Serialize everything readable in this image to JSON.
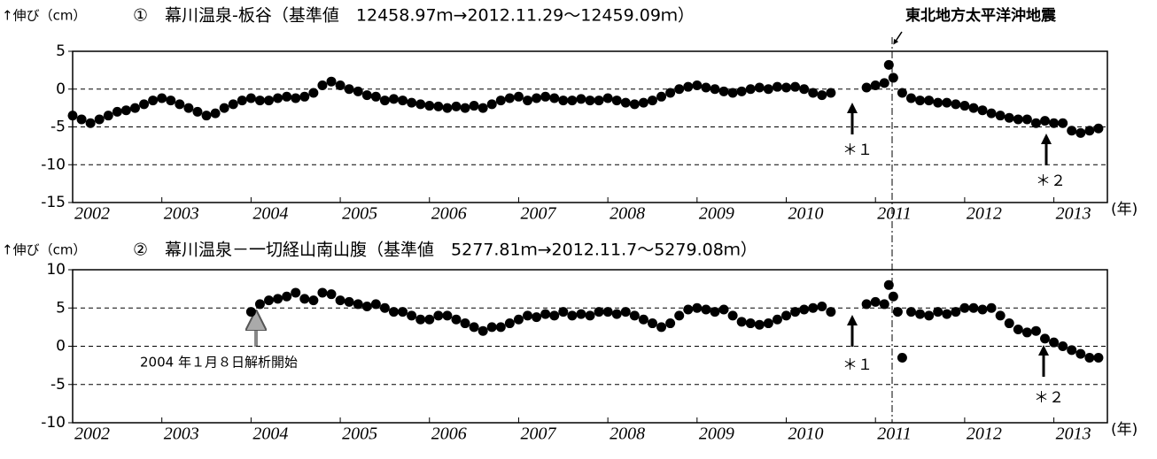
{
  "chart_data": [
    {
      "type": "scatter",
      "title": "①　幕川温泉-板谷（基準値　12458.97ｍ→2012.11.29～12459.09ｍ）",
      "ylabel": "↑伸び（cm）",
      "xlabel": "(年)",
      "color": "#000000",
      "annotations": [
        "東北地方太平洋沖地震",
        "＊１",
        "＊２"
      ],
      "xlim": [
        2002,
        2013.6
      ],
      "ylim": [
        -15,
        5
      ],
      "xticks": [
        2002,
        2003,
        2004,
        2005,
        2006,
        2007,
        2008,
        2009,
        2010,
        2011,
        2012,
        2013
      ],
      "yticks": [
        5,
        0,
        -5,
        -10,
        -15
      ],
      "grid": true,
      "x": [
        2002.0,
        2002.1,
        2002.2,
        2002.3,
        2002.4,
        2002.5,
        2002.6,
        2002.7,
        2002.8,
        2002.9,
        2003.0,
        2003.1,
        2003.2,
        2003.3,
        2003.4,
        2003.5,
        2003.6,
        2003.7,
        2003.8,
        2003.9,
        2004.0,
        2004.1,
        2004.2,
        2004.3,
        2004.4,
        2004.5,
        2004.6,
        2004.7,
        2004.8,
        2004.9,
        2005.0,
        2005.1,
        2005.2,
        2005.3,
        2005.4,
        2005.5,
        2005.6,
        2005.7,
        2005.8,
        2005.9,
        2006.0,
        2006.1,
        2006.2,
        2006.3,
        2006.4,
        2006.5,
        2006.6,
        2006.7,
        2006.8,
        2006.9,
        2007.0,
        2007.1,
        2007.2,
        2007.3,
        2007.4,
        2007.5,
        2007.6,
        2007.7,
        2007.8,
        2007.9,
        2008.0,
        2008.1,
        2008.2,
        2008.3,
        2008.4,
        2008.5,
        2008.6,
        2008.7,
        2008.8,
        2008.9,
        2009.0,
        2009.1,
        2009.2,
        2009.3,
        2009.4,
        2009.5,
        2009.6,
        2009.7,
        2009.8,
        2009.9,
        2010.0,
        2010.1,
        2010.2,
        2010.3,
        2010.4,
        2010.5,
        2010.9,
        2011.0,
        2011.1,
        2011.15,
        2011.2,
        2011.3,
        2011.4,
        2011.5,
        2011.6,
        2011.7,
        2011.8,
        2011.9,
        2012.0,
        2012.1,
        2012.2,
        2012.3,
        2012.4,
        2012.5,
        2012.6,
        2012.7,
        2012.8,
        2012.9,
        2013.0,
        2013.1,
        2013.2,
        2013.3,
        2013.4,
        2013.5
      ],
      "values": [
        -3.5,
        -4,
        -4.5,
        -4,
        -3.5,
        -3,
        -2.8,
        -2.5,
        -2,
        -1.5,
        -1.2,
        -1.5,
        -2,
        -2.5,
        -3,
        -3.5,
        -3.2,
        -2.5,
        -2,
        -1.5,
        -1.2,
        -1.5,
        -1.5,
        -1.2,
        -1,
        -1.2,
        -1,
        -0.5,
        0.5,
        1,
        0.5,
        0,
        -0.3,
        -0.8,
        -1,
        -1.5,
        -1.3,
        -1.5,
        -1.8,
        -2,
        -2.2,
        -2.3,
        -2.5,
        -2.3,
        -2.5,
        -2.2,
        -2.5,
        -2,
        -1.5,
        -1.2,
        -1,
        -1.5,
        -1.2,
        -1,
        -1.2,
        -1.5,
        -1.5,
        -1.3,
        -1.5,
        -1.5,
        -1.2,
        -1.5,
        -1.8,
        -2,
        -1.8,
        -1.5,
        -1,
        -0.5,
        0,
        0.3,
        0.5,
        0.2,
        0,
        -0.3,
        -0.5,
        -0.3,
        0,
        0.2,
        0,
        0.3,
        0.2,
        0.3,
        0,
        -0.5,
        -0.8,
        -0.5,
        0.2,
        0.5,
        0.8,
        3.2,
        1.5,
        -0.5,
        -1.2,
        -1.5,
        -1.5,
        -1.8,
        -1.8,
        -2,
        -2.2,
        -2.5,
        -2.8,
        -3.2,
        -3.5,
        -3.8,
        -4,
        -4,
        -4.5,
        -4.2,
        -4.5,
        -4.5,
        -5.5,
        -5.8,
        -5.5,
        -5.2
      ]
    },
    {
      "type": "scatter",
      "title": "②　幕川温泉－一切経山南山腹（基準値　5277.81ｍ→2012.11.7～5279.08ｍ）",
      "ylabel": "↑伸び（cm）",
      "xlabel": "(年)",
      "color": "#000000",
      "annotations": [
        "2004 年１月８日解析開始",
        "＊１",
        "＊２"
      ],
      "xlim": [
        2002,
        2013.6
      ],
      "ylim": [
        -10,
        10
      ],
      "xticks": [
        2002,
        2003,
        2004,
        2005,
        2006,
        2007,
        2008,
        2009,
        2010,
        2011,
        2012,
        2013
      ],
      "yticks": [
        10,
        5,
        0,
        -5,
        -10
      ],
      "grid": true,
      "x": [
        2004.0,
        2004.1,
        2004.2,
        2004.3,
        2004.4,
        2004.5,
        2004.6,
        2004.7,
        2004.8,
        2004.9,
        2005.0,
        2005.1,
        2005.2,
        2005.3,
        2005.4,
        2005.5,
        2005.6,
        2005.7,
        2005.8,
        2005.9,
        2006.0,
        2006.1,
        2006.2,
        2006.3,
        2006.4,
        2006.5,
        2006.6,
        2006.7,
        2006.8,
        2006.9,
        2007.0,
        2007.1,
        2007.2,
        2007.3,
        2007.4,
        2007.5,
        2007.6,
        2007.7,
        2007.8,
        2007.9,
        2008.0,
        2008.1,
        2008.2,
        2008.3,
        2008.4,
        2008.5,
        2008.6,
        2008.7,
        2008.8,
        2008.9,
        2009.0,
        2009.1,
        2009.2,
        2009.3,
        2009.4,
        2009.5,
        2009.6,
        2009.7,
        2009.8,
        2009.9,
        2010.0,
        2010.1,
        2010.2,
        2010.3,
        2010.4,
        2010.5,
        2010.9,
        2011.0,
        2011.1,
        2011.15,
        2011.2,
        2011.25,
        2011.3,
        2011.4,
        2011.5,
        2011.6,
        2011.7,
        2011.8,
        2011.9,
        2012.0,
        2012.1,
        2012.2,
        2012.3,
        2012.4,
        2012.5,
        2012.6,
        2012.7,
        2012.8,
        2012.9,
        2013.0,
        2013.1,
        2013.2,
        2013.3,
        2013.4,
        2013.5
      ],
      "values": [
        4.5,
        5.5,
        6,
        6.2,
        6.5,
        7,
        6.2,
        6,
        7,
        6.8,
        6,
        5.8,
        5.5,
        5.2,
        5.5,
        5,
        4.5,
        4.5,
        4,
        3.5,
        3.5,
        4,
        4,
        3.5,
        3,
        2.5,
        2,
        2.5,
        2.5,
        3,
        3.5,
        4,
        3.8,
        4.2,
        4,
        4.5,
        4,
        4.2,
        4,
        4.5,
        4.5,
        4.2,
        4.5,
        4,
        3.5,
        3,
        2.5,
        3,
        4,
        4.8,
        5,
        4.8,
        4.5,
        4.8,
        4,
        3.2,
        3,
        2.8,
        3,
        3.5,
        4,
        4.5,
        4.8,
        5,
        5.2,
        4.5,
        5.5,
        5.8,
        5.5,
        8,
        6.5,
        4.5,
        -1.5,
        4.5,
        4.2,
        4,
        4.5,
        4.2,
        4.5,
        5,
        5,
        4.8,
        5,
        4,
        3,
        2.2,
        1.8,
        2,
        1,
        0.5,
        0,
        -0.5,
        -1,
        -1.5,
        -1.5
      ]
    }
  ]
}
